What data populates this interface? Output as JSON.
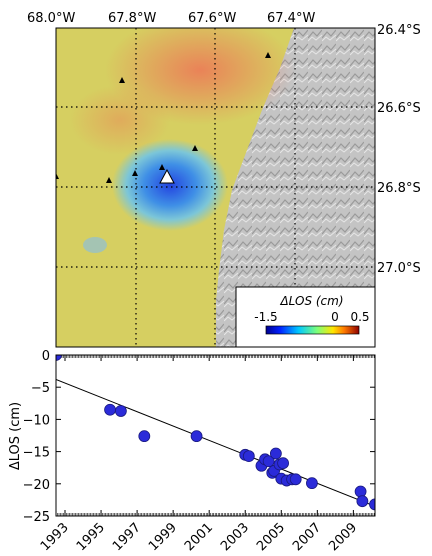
{
  "map": {
    "lon_ticks": [
      "68.0°W",
      "67.8°W",
      "67.6°W",
      "67.4°W"
    ],
    "lat_ticks": [
      "26.4°S",
      "26.6°S",
      "26.8°S",
      "27.0°S"
    ],
    "colorbar": {
      "title": "ΔLOS (cm)",
      "tick_labels": [
        "-1.5",
        "0",
        "0.5"
      ],
      "min": -1.5,
      "max": 0.5
    },
    "colors": {
      "land": "#d7d063",
      "uplift": "#e98f5e",
      "deformation": "#1e6fe0",
      "relief": "#bdbdbd"
    }
  },
  "chart_data": {
    "type": "scatter",
    "ylabel": "ΔLOS (cm)",
    "xlim": [
      1992.5,
      2010.2
    ],
    "ylim": [
      -25,
      0
    ],
    "xticks": [
      1993,
      1995,
      1997,
      1999,
      2001,
      2003,
      2005,
      2007,
      2009
    ],
    "yticks": [
      0,
      -5,
      -10,
      -15,
      -20,
      -25
    ],
    "trend": {
      "x": [
        1992.5,
        2010.2
      ],
      "y": [
        -3.8,
        -23.5
      ]
    },
    "series": [
      {
        "color": "#2b2bd9",
        "x": [
          1992.5,
          1995.5,
          1996.1,
          1997.4,
          2000.3,
          2003.0,
          2003.2,
          2003.9,
          2004.1,
          2004.3,
          2004.5,
          2004.6,
          2004.7,
          2004.9,
          2005.0,
          2005.1,
          2005.3,
          2005.6,
          2005.8,
          2006.7,
          2009.4,
          2009.5,
          2010.2
        ],
        "y": [
          0,
          -8.5,
          -8.7,
          -12.6,
          -12.6,
          -15.5,
          -15.7,
          -17.2,
          -16.2,
          -16.5,
          -18.3,
          -18.0,
          -15.3,
          -17.0,
          -19.2,
          -16.8,
          -19.5,
          -19.3,
          -19.3,
          -19.9,
          -21.2,
          -22.7,
          -23.2
        ]
      }
    ]
  }
}
